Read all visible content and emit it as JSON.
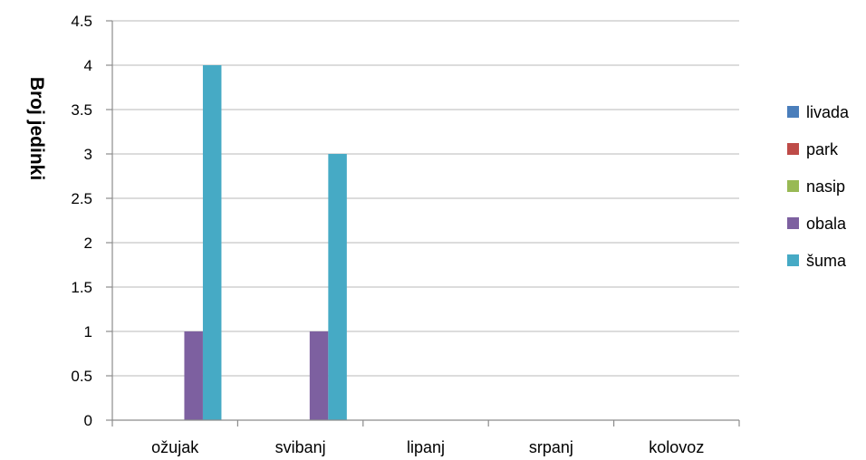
{
  "chart_data": {
    "type": "bar",
    "title": "",
    "xlabel": "",
    "ylabel": "Broj jedinki",
    "categories": [
      "ožujak",
      "svibanj",
      "lipanj",
      "srpanj",
      "kolovoz"
    ],
    "ylim": [
      0,
      4.5
    ],
    "yticks": [
      "0",
      "0.5",
      "1",
      "1.5",
      "2",
      "2.5",
      "3",
      "3.5",
      "4",
      "4.5"
    ],
    "grid": true,
    "legend_position": "right",
    "series": [
      {
        "name": "livada",
        "color": "#4a7ebb",
        "values": [
          0,
          0,
          0,
          0,
          0
        ]
      },
      {
        "name": "park",
        "color": "#be4b48",
        "values": [
          0,
          0,
          0,
          0,
          0
        ]
      },
      {
        "name": "nasip",
        "color": "#98b954",
        "values": [
          0,
          0,
          0,
          0,
          0
        ]
      },
      {
        "name": "obala",
        "color": "#7d60a0",
        "values": [
          1,
          1,
          0,
          0,
          0
        ]
      },
      {
        "name": "šuma",
        "color": "#46aac5",
        "values": [
          4,
          3,
          0,
          0,
          0
        ]
      }
    ]
  }
}
